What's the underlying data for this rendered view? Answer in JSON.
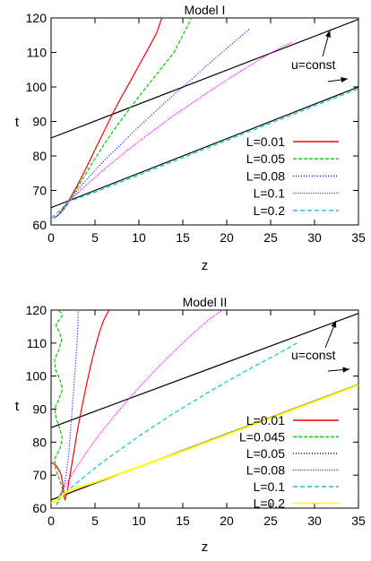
{
  "chart_data": [
    {
      "type": "line",
      "title": "Model I",
      "xlabel": "z",
      "ylabel": "t",
      "xlim": [
        0,
        35
      ],
      "ylim": [
        60,
        120
      ],
      "xticks": [
        0,
        5,
        10,
        15,
        20,
        25,
        30,
        35
      ],
      "yticks": [
        60,
        70,
        80,
        90,
        100,
        110,
        120
      ],
      "grid": false,
      "legend_position": "bottom-right",
      "annotation": "u=const",
      "reference_lines": [
        {
          "x": [
            0,
            35
          ],
          "y": [
            85.2,
            119.6
          ],
          "color": "#000000"
        },
        {
          "x": [
            0,
            35
          ],
          "y": [
            65.0,
            100.0
          ],
          "color": "#000000"
        }
      ],
      "series": [
        {
          "name": "L=0.01",
          "color": "#ff0000",
          "dash": "solid",
          "x": [
            0.3,
            0.8,
            1.3,
            2.0,
            3.0,
            4.0,
            5.0,
            6.0,
            7.0,
            8.0,
            9.0,
            10.0,
            11.0,
            12.0,
            12.6
          ],
          "y": [
            62.0,
            62.8,
            64.5,
            67.0,
            71.5,
            76.5,
            81.8,
            87.0,
            92.2,
            97.0,
            101.5,
            106.2,
            110.8,
            115.5,
            119.9
          ]
        },
        {
          "name": "L=0.05",
          "color": "#00cc00",
          "dash": "4,2",
          "x": [
            0.3,
            0.8,
            1.3,
            2.0,
            3.0,
            4.0,
            5.0,
            6.0,
            7.0,
            8.0,
            10.0,
            12.0,
            14.0,
            16.0
          ],
          "y": [
            62.0,
            62.8,
            64.3,
            66.8,
            70.8,
            75.0,
            79.2,
            83.2,
            87.0,
            90.5,
            97.2,
            103.6,
            110.0,
            120.0
          ]
        },
        {
          "name": "L=0.08",
          "color": "#0000ff",
          "dash": "1,2",
          "x": [
            0.3,
            0.8,
            1.3,
            2.0,
            3.0,
            4.0,
            5.0,
            6.0,
            8.0,
            10.0,
            12.0,
            14.0,
            16.0,
            18.0,
            20.0,
            22.6
          ],
          "y": [
            62.0,
            62.8,
            64.0,
            66.6,
            70.0,
            73.0,
            75.8,
            78.5,
            83.5,
            88.5,
            93.2,
            97.8,
            102.2,
            106.8,
            111.2,
            116.8
          ]
        },
        {
          "name": "L=0.1",
          "color": "#ff00ff",
          "dash": "1,1",
          "x": [
            0.3,
            0.8,
            1.3,
            2.0,
            3.0,
            4.0,
            5.0,
            6.0,
            8.0,
            10.0,
            12.0,
            14.0,
            16.0,
            18.0,
            20.0,
            22.0,
            24.0,
            26.0,
            27.5
          ],
          "y": [
            62.0,
            62.8,
            64.0,
            66.5,
            69.2,
            71.5,
            73.8,
            76.0,
            80.2,
            84.2,
            88.0,
            91.8,
            95.2,
            98.7,
            102.0,
            105.2,
            108.3,
            111.2,
            113.0
          ]
        },
        {
          "name": "L=0.2",
          "color": "#00cccc",
          "dash": "5,3",
          "x": [
            0.0,
            0.5,
            1.0,
            1.5,
            2.0,
            5.0,
            10.0,
            15.0,
            20.0,
            25.0,
            30.0,
            35.0
          ],
          "y": [
            62.0,
            63.0,
            64.2,
            65.5,
            66.8,
            69.5,
            74.5,
            79.5,
            84.5,
            89.5,
            94.5,
            99.5
          ]
        }
      ]
    },
    {
      "type": "line",
      "title": "Model II",
      "xlabel": "z",
      "ylabel": "t",
      "xlim": [
        0,
        35
      ],
      "ylim": [
        60,
        120
      ],
      "xticks": [
        0,
        5,
        10,
        15,
        20,
        25,
        30,
        35
      ],
      "yticks": [
        60,
        70,
        80,
        90,
        100,
        110,
        120
      ],
      "grid": false,
      "legend_position": "bottom-right",
      "annotation": "u=const",
      "reference_lines": [
        {
          "x": [
            0,
            35
          ],
          "y": [
            84.4,
            119.0
          ],
          "color": "#000000"
        },
        {
          "x": [
            0,
            35
          ],
          "y": [
            62.5,
            97.5
          ],
          "color": "#000000"
        }
      ],
      "series": [
        {
          "name": "L=0.01",
          "color": "#ff0000",
          "dash": "solid",
          "x": [
            0.0,
            0.6,
            1.1,
            1.3,
            1.4,
            1.5,
            1.6,
            1.8,
            2.0,
            2.5,
            3.0,
            3.5,
            4.0,
            4.5,
            5.0,
            5.5,
            6.0,
            6.6
          ],
          "y": [
            74.0,
            72.8,
            70.5,
            68.0,
            65.5,
            63.2,
            62.6,
            64.5,
            67.5,
            75.5,
            83.5,
            90.5,
            97.0,
            103.0,
            108.5,
            113.2,
            117.0,
            120.0
          ]
        },
        {
          "name": "L=0.045",
          "color": "#00cc00",
          "dash": "4,2",
          "x": [
            0.6,
            1.0,
            1.3,
            0.9,
            0.5,
            0.4,
            1.0,
            1.3,
            1.0,
            0.6,
            0.4,
            0.9,
            1.3,
            1.0,
            0.5,
            0.4,
            0.9,
            1.2,
            1.0,
            0.6,
            0.6,
            1.1,
            1.3,
            1.1,
            0.8
          ],
          "y": [
            61.0,
            63.0,
            66.0,
            69.0,
            72.0,
            75.0,
            78.0,
            81.0,
            84.0,
            87.0,
            90.0,
            93.0,
            96.0,
            99.0,
            102.0,
            105.0,
            108.0,
            111.0,
            113.0,
            115.0,
            116.0,
            117.5,
            118.5,
            119.3,
            120.0
          ]
        },
        {
          "name": "L=0.05",
          "color": "#0000ff",
          "dash": "1,2",
          "x": [
            0.3,
            0.8,
            1.2,
            1.5,
            1.7,
            2.0,
            2.2,
            2.4,
            2.6,
            2.8,
            3.0,
            3.1
          ],
          "y": [
            62.0,
            62.8,
            64.5,
            67.0,
            70.0,
            76.0,
            83.0,
            90.0,
            97.0,
            104.0,
            112.0,
            120.0
          ]
        },
        {
          "name": "L=0.08",
          "color": "#ff00ff",
          "dash": "1,1",
          "x": [
            0.3,
            0.8,
            1.2,
            2.0,
            3.0,
            4.0,
            5.0,
            6.0,
            8.0,
            10.0,
            12.0,
            14.0,
            16.0,
            18.0,
            19.5
          ],
          "y": [
            62.0,
            63.0,
            64.8,
            68.5,
            72.8,
            76.8,
            80.5,
            84.0,
            90.5,
            96.5,
            102.2,
            107.5,
            112.5,
            117.2,
            120.0
          ]
        },
        {
          "name": "L=0.1",
          "color": "#00cccc",
          "dash": "5,3",
          "x": [
            0.3,
            1.0,
            2.0,
            3.0,
            4.0,
            6.0,
            8.0,
            10.0,
            12.0,
            14.0,
            16.0,
            18.0,
            20.0,
            22.0,
            24.0,
            26.0,
            28.0
          ],
          "y": [
            62.0,
            63.5,
            65.5,
            67.8,
            70.0,
            74.2,
            78.0,
            81.8,
            85.3,
            88.8,
            92.0,
            95.2,
            98.3,
            101.3,
            104.2,
            107.0,
            110.0
          ]
        },
        {
          "name": "L=0.2",
          "color": "#ffff00",
          "dash": "solid",
          "x": [
            0.0,
            0.5,
            1.0,
            1.5,
            2.0,
            5.0,
            10.0,
            15.0,
            20.0,
            25.0,
            30.0,
            35.0
          ],
          "y": [
            61.5,
            62.3,
            63.3,
            64.3,
            65.3,
            67.8,
            72.5,
            77.3,
            82.3,
            87.3,
            92.3,
            97.3
          ]
        }
      ]
    }
  ]
}
